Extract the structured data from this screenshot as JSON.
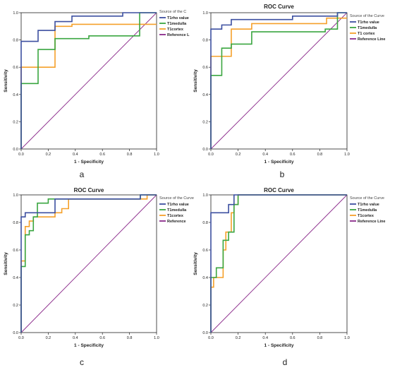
{
  "panels_meta": {
    "y_ticks": [
      "0.0",
      "0.2",
      "0.4",
      "0.6",
      "0.8",
      "1.0"
    ],
    "x_ticks": [
      "0.0",
      "0.2",
      "0.4",
      "0.6",
      "0.8",
      "1.0"
    ]
  },
  "chart_data": [
    {
      "type": "line",
      "caption": "a",
      "title": "",
      "xlabel": "1 - Specificity",
      "ylabel": "Sensitivity",
      "xlim": [
        0,
        1
      ],
      "ylim": [
        0,
        1
      ],
      "grid": false,
      "legend": {
        "title": "Source of the C",
        "position": "top-right"
      },
      "series": [
        {
          "name": "T1rho value",
          "color": "#3c4fa0",
          "x": [
            0,
            0,
            0.125,
            0.125,
            0.25,
            0.25,
            0.375,
            0.375,
            0.75,
            0.75,
            1.0
          ],
          "y": [
            0,
            0.79,
            0.79,
            0.87,
            0.87,
            0.935,
            0.935,
            0.975,
            0.975,
            1.0,
            1.0
          ]
        },
        {
          "name": "T1medulla",
          "color": "#3aa640",
          "x": [
            0,
            0,
            0.125,
            0.125,
            0.25,
            0.25,
            0.5,
            0.5,
            0.875,
            0.875,
            1.0
          ],
          "y": [
            0,
            0.48,
            0.48,
            0.73,
            0.73,
            0.81,
            0.81,
            0.83,
            0.83,
            1.0,
            1.0
          ]
        },
        {
          "name": "T1cortex",
          "color": "#f5a02a",
          "x": [
            0,
            0,
            0.25,
            0.25,
            0.375,
            0.375,
            1.0
          ],
          "y": [
            0,
            0.6,
            0.6,
            0.9,
            0.9,
            0.915,
            0.915
          ]
        },
        {
          "name": "Reference L",
          "color": "#8b2a8b",
          "x": [
            0,
            1
          ],
          "y": [
            0,
            1
          ]
        }
      ]
    },
    {
      "type": "line",
      "caption": "b",
      "title": "ROC Curve",
      "xlabel": "1 - Specificity",
      "ylabel": "Sensitivity",
      "xlim": [
        0,
        1
      ],
      "ylim": [
        0,
        1
      ],
      "grid": false,
      "legend": {
        "title": "Source of the Curve",
        "position": "top-right"
      },
      "series": [
        {
          "name": "T1rho value",
          "color": "#3c4fa0",
          "x": [
            0,
            0,
            0.08,
            0.08,
            0.15,
            0.15,
            0.6,
            0.6,
            0.93,
            0.93,
            1.0
          ],
          "y": [
            0,
            0.88,
            0.88,
            0.91,
            0.91,
            0.95,
            0.95,
            0.975,
            0.975,
            1.0,
            1.0
          ]
        },
        {
          "name": "T1medulla",
          "color": "#3aa640",
          "x": [
            0,
            0,
            0.08,
            0.08,
            0.15,
            0.15,
            0.3,
            0.3,
            0.84,
            0.84,
            0.93,
            0.93,
            1.0
          ],
          "y": [
            0,
            0.54,
            0.54,
            0.74,
            0.74,
            0.77,
            0.77,
            0.86,
            0.86,
            0.88,
            0.88,
            1.0,
            1.0
          ]
        },
        {
          "name": "T1 cortex",
          "color": "#f5a02a",
          "x": [
            0,
            0,
            0.15,
            0.15,
            0.3,
            0.3,
            0.85,
            0.85,
            1.0
          ],
          "y": [
            0,
            0.68,
            0.68,
            0.88,
            0.88,
            0.92,
            0.92,
            0.96,
            0.96
          ]
        },
        {
          "name": "Reference Line",
          "color": "#8b2a8b",
          "x": [
            0,
            1
          ],
          "y": [
            0,
            1
          ]
        }
      ]
    },
    {
      "type": "line",
      "caption": "c",
      "title": "ROC Curve",
      "xlabel": "1 - Specificity",
      "ylabel": "Sensitivity",
      "xlim": [
        0,
        1
      ],
      "ylim": [
        0,
        1
      ],
      "grid": false,
      "legend": {
        "title": "Source of the Curve",
        "position": "top-right"
      },
      "series": [
        {
          "name": "T1rho value",
          "color": "#3c4fa0",
          "x": [
            0,
            0,
            0.03,
            0.03,
            0.06,
            0.06,
            0.25,
            0.25,
            0.88,
            0.88,
            1.0
          ],
          "y": [
            0,
            0.84,
            0.84,
            0.87,
            0.87,
            0.87,
            0.87,
            0.97,
            0.97,
            1.0,
            1.0
          ]
        },
        {
          "name": "T1medulla",
          "color": "#3aa640",
          "x": [
            0,
            0,
            0.03,
            0.03,
            0.06,
            0.06,
            0.09,
            0.09,
            0.12,
            0.12,
            0.2,
            0.2,
            0.88,
            0.88,
            1.0
          ],
          "y": [
            0,
            0.48,
            0.48,
            0.71,
            0.71,
            0.74,
            0.74,
            0.84,
            0.84,
            0.94,
            0.94,
            0.97,
            0.97,
            1.0,
            1.0
          ]
        },
        {
          "name": "T1cortex",
          "color": "#f5a02a",
          "x": [
            0,
            0,
            0.03,
            0.03,
            0.06,
            0.06,
            0.09,
            0.09,
            0.25,
            0.25,
            0.3,
            0.3,
            0.35,
            0.35,
            0.93,
            0.93,
            1.0
          ],
          "y": [
            0,
            0.52,
            0.52,
            0.77,
            0.77,
            0.81,
            0.81,
            0.84,
            0.84,
            0.87,
            0.87,
            0.9,
            0.9,
            0.97,
            0.97,
            1.0,
            1.0
          ]
        },
        {
          "name": "Reference",
          "color": "#8b2a8b",
          "x": [
            0,
            1
          ],
          "y": [
            0,
            1
          ]
        }
      ]
    },
    {
      "type": "line",
      "caption": "d",
      "title": "ROC Curve",
      "xlabel": "1 - Specificity",
      "ylabel": "Sensitivity",
      "xlim": [
        0,
        1
      ],
      "ylim": [
        0,
        1
      ],
      "grid": false,
      "legend": {
        "title": "Source of the Curve",
        "position": "top-right"
      },
      "series": [
        {
          "name": "T1rho value",
          "color": "#3c4fa0",
          "x": [
            0,
            0,
            0.13,
            0.13,
            0.17,
            0.17,
            1.0
          ],
          "y": [
            0,
            0.87,
            0.87,
            0.93,
            0.93,
            1.0,
            1.0
          ]
        },
        {
          "name": "T1medulla",
          "color": "#3aa640",
          "x": [
            0,
            0,
            0.04,
            0.04,
            0.09,
            0.09,
            0.13,
            0.13,
            0.17,
            0.17,
            0.2,
            0.2,
            1.0
          ],
          "y": [
            0,
            0.4,
            0.4,
            0.47,
            0.47,
            0.67,
            0.67,
            0.73,
            0.73,
            0.93,
            0.93,
            1.0,
            1.0
          ]
        },
        {
          "name": "T1cortex",
          "color": "#f5a02a",
          "x": [
            0,
            0,
            0.02,
            0.02,
            0.09,
            0.09,
            0.11,
            0.11,
            0.15,
            0.15,
            0.17,
            0.17,
            0.2,
            0.2,
            1.0
          ],
          "y": [
            0,
            0.33,
            0.33,
            0.4,
            0.4,
            0.6,
            0.6,
            0.73,
            0.73,
            0.87,
            0.87,
            0.93,
            0.93,
            1.0,
            1.0
          ]
        },
        {
          "name": "Reference Line",
          "color": "#8b2a8b",
          "x": [
            0,
            1
          ],
          "y": [
            0,
            1
          ]
        }
      ]
    }
  ]
}
